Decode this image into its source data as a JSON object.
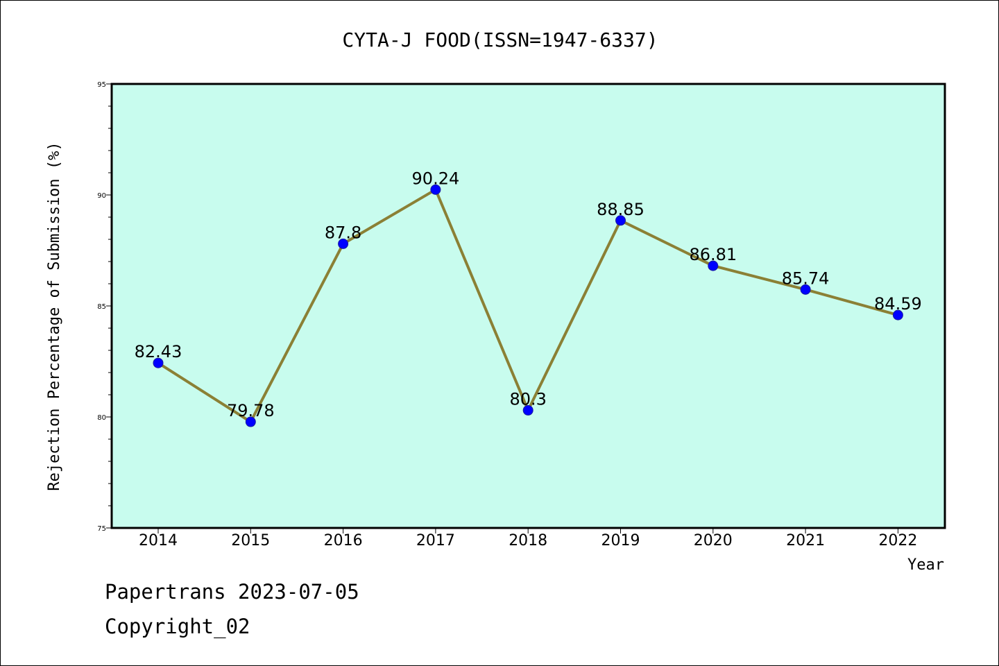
{
  "chart_data": {
    "type": "line",
    "title": "CYTA-J FOOD(ISSN=1947-6337)",
    "xlabel": "Year",
    "ylabel": "Rejection Percentage of Submission (%)",
    "categories": [
      "2014",
      "2015",
      "2016",
      "2017",
      "2018",
      "2019",
      "2020",
      "2021",
      "2022"
    ],
    "values": [
      82.43,
      79.78,
      87.8,
      90.24,
      80.3,
      88.85,
      86.81,
      85.74,
      84.59
    ],
    "data_labels": [
      "82.43",
      "79.78",
      "87.8",
      "90.24",
      "80.3",
      "88.85",
      "86.81",
      "85.74",
      "84.59"
    ],
    "ylim": [
      75,
      95
    ],
    "yticks": [
      75,
      80,
      85,
      90,
      95
    ],
    "grid": false,
    "legend": "none",
    "colors": {
      "plot_background": "#c8fcee",
      "line": "#8b8035",
      "marker": "#0000ff"
    }
  },
  "footer": {
    "line1": "Papertrans 2023-07-05",
    "line2": "Copyright_02"
  }
}
